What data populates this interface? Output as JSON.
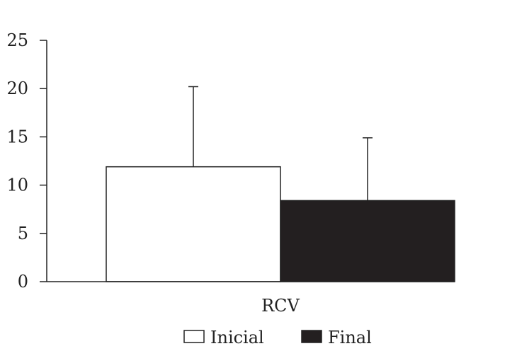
{
  "chart_data": {
    "type": "bar",
    "categories": [
      "RCV"
    ],
    "series": [
      {
        "name": "Inicial",
        "values": [
          11.9
        ],
        "error": [
          8.3
        ],
        "color": "#ffffff"
      },
      {
        "name": "Final",
        "values": [
          8.4
        ],
        "error": [
          6.5
        ],
        "color": "#231f20"
      }
    ],
    "ylim": [
      0,
      25
    ],
    "yticks": [
      "0",
      "5",
      "10",
      "15",
      "20",
      "25"
    ],
    "legend_position": "bottom",
    "grid": false,
    "title": "",
    "xlabel": "",
    "ylabel": ""
  }
}
